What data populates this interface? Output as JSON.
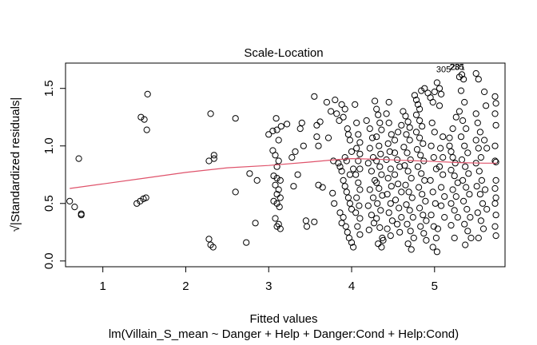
{
  "chart_data": {
    "type": "scatter",
    "title": "Scale-Location",
    "xlabel": "Fitted values",
    "caption": "lm(Villain_S_mean ~ Danger + Help + Danger:Cond + Help:Cond)",
    "ylabel": "√|Standardized residuals|",
    "xlim": [
      0.55,
      5.85
    ],
    "ylim": [
      -0.05,
      1.72
    ],
    "x_ticks": [
      1,
      2,
      3,
      4,
      5
    ],
    "x_tick_labels": [
      "1",
      "2",
      "3",
      "4",
      "5"
    ],
    "y_ticks": [
      0.0,
      0.5,
      1.0,
      1.5
    ],
    "y_tick_labels": [
      "0.0",
      "0.5",
      "1.0",
      "1.5"
    ],
    "line_color": "#DF536B",
    "point_color": "#000000",
    "labels": [
      {
        "text": "305",
        "x": 5.02,
        "y": 1.64
      },
      {
        "text": "201",
        "x": 5.19,
        "y": 1.66
      },
      {
        "text": "235",
        "x": 5.18,
        "y": 1.66
      }
    ],
    "points": [
      [
        0.6,
        0.52
      ],
      [
        0.66,
        0.47
      ],
      [
        0.71,
        0.89
      ],
      [
        0.74,
        0.4
      ],
      [
        0.74,
        0.41
      ],
      [
        1.41,
        0.5
      ],
      [
        1.45,
        0.52
      ],
      [
        1.49,
        0.54
      ],
      [
        1.52,
        0.55
      ],
      [
        1.46,
        1.25
      ],
      [
        1.5,
        1.23
      ],
      [
        1.54,
        1.45
      ],
      [
        1.53,
        1.14
      ],
      [
        2.28,
        0.19
      ],
      [
        2.3,
        0.14
      ],
      [
        2.33,
        0.12
      ],
      [
        2.28,
        0.87
      ],
      [
        2.34,
        0.89
      ],
      [
        2.34,
        0.92
      ],
      [
        2.3,
        1.28
      ],
      [
        2.6,
        1.24
      ],
      [
        2.6,
        0.6
      ],
      [
        2.73,
        0.16
      ],
      [
        2.77,
        0.76
      ],
      [
        2.86,
        0.7
      ],
      [
        2.84,
        0.33
      ],
      [
        3.0,
        1.1
      ],
      [
        3.05,
        1.13
      ],
      [
        3.1,
        1.14
      ],
      [
        3.15,
        1.17
      ],
      [
        3.22,
        1.19
      ],
      [
        3.09,
        1.24
      ],
      [
        3.12,
        1.05
      ],
      [
        3.05,
        0.96
      ],
      [
        3.08,
        0.92
      ],
      [
        3.12,
        0.87
      ],
      [
        3.1,
        0.82
      ],
      [
        3.06,
        0.74
      ],
      [
        3.1,
        0.72
      ],
      [
        3.14,
        0.7
      ],
      [
        3.08,
        0.66
      ],
      [
        3.12,
        0.62
      ],
      [
        3.1,
        0.58
      ],
      [
        3.14,
        0.55
      ],
      [
        3.06,
        0.52
      ],
      [
        3.1,
        0.5
      ],
      [
        3.13,
        0.47
      ],
      [
        3.08,
        0.37
      ],
      [
        3.12,
        0.32
      ],
      [
        3.14,
        0.28
      ],
      [
        3.1,
        0.3
      ],
      [
        3.3,
        0.65
      ],
      [
        3.35,
        0.75
      ],
      [
        3.28,
        0.9
      ],
      [
        3.32,
        0.95
      ],
      [
        3.38,
        1.15
      ],
      [
        3.4,
        1.2
      ],
      [
        3.42,
        1.0
      ],
      [
        3.45,
        0.35
      ],
      [
        3.46,
        0.3
      ],
      [
        3.55,
        0.34
      ],
      [
        3.6,
        0.66
      ],
      [
        3.65,
        0.64
      ],
      [
        3.58,
        1.08
      ],
      [
        3.62,
        1.21
      ],
      [
        3.55,
        1.43
      ],
      [
        3.58,
        1.18
      ],
      [
        3.6,
        1.0
      ],
      [
        3.7,
        1.38
      ],
      [
        3.72,
        1.07
      ],
      [
        3.75,
        1.3
      ],
      [
        3.78,
        0.87
      ],
      [
        3.8,
        1.4
      ],
      [
        3.77,
        0.59
      ],
      [
        3.79,
        0.5
      ],
      [
        3.82,
        1.28
      ],
      [
        3.85,
        1.22
      ],
      [
        3.88,
        1.36
      ],
      [
        3.9,
        1.25
      ],
      [
        3.92,
        1.32
      ],
      [
        3.95,
        1.15
      ],
      [
        3.96,
        1.1
      ],
      [
        3.98,
        1.05
      ],
      [
        4.0,
        0.95
      ],
      [
        3.84,
        0.85
      ],
      [
        3.86,
        0.82
      ],
      [
        3.88,
        0.78
      ],
      [
        3.9,
        0.7
      ],
      [
        3.92,
        0.65
      ],
      [
        3.94,
        0.6
      ],
      [
        3.96,
        0.55
      ],
      [
        3.98,
        0.5
      ],
      [
        4.0,
        0.45
      ],
      [
        3.86,
        0.42
      ],
      [
        3.9,
        0.38
      ],
      [
        3.93,
        0.3
      ],
      [
        3.95,
        0.25
      ],
      [
        3.97,
        0.2
      ],
      [
        4.0,
        0.16
      ],
      [
        4.02,
        0.12
      ],
      [
        3.88,
        0.33
      ],
      [
        3.92,
        0.9
      ],
      [
        3.94,
        0.87
      ],
      [
        3.98,
        0.75
      ],
      [
        4.02,
        0.8
      ],
      [
        4.04,
        1.36
      ],
      [
        4.06,
        1.2
      ],
      [
        4.08,
        1.1
      ],
      [
        4.1,
        1.03
      ],
      [
        4.06,
        0.98
      ],
      [
        4.1,
        0.93
      ],
      [
        4.08,
        0.87
      ],
      [
        4.1,
        0.8
      ],
      [
        4.05,
        0.75
      ],
      [
        4.08,
        0.68
      ],
      [
        4.1,
        0.62
      ],
      [
        4.06,
        0.55
      ],
      [
        4.09,
        0.48
      ],
      [
        4.05,
        0.42
      ],
      [
        4.1,
        0.37
      ],
      [
        4.07,
        0.3
      ],
      [
        4.1,
        0.23
      ],
      [
        4.18,
        1.22
      ],
      [
        4.22,
        1.15
      ],
      [
        4.25,
        1.07
      ],
      [
        4.22,
        0.98
      ],
      [
        4.26,
        0.9
      ],
      [
        4.2,
        0.85
      ],
      [
        4.24,
        0.78
      ],
      [
        4.28,
        0.7
      ],
      [
        4.22,
        0.62
      ],
      [
        4.26,
        0.55
      ],
      [
        4.2,
        0.48
      ],
      [
        4.24,
        0.4
      ],
      [
        4.27,
        0.33
      ],
      [
        4.21,
        0.27
      ],
      [
        4.28,
        1.39
      ],
      [
        4.3,
        1.32
      ],
      [
        4.32,
        1.27
      ],
      [
        4.34,
        1.2
      ],
      [
        4.36,
        1.14
      ],
      [
        4.3,
        1.08
      ],
      [
        4.33,
        1.0
      ],
      [
        4.35,
        0.93
      ],
      [
        4.3,
        0.87
      ],
      [
        4.34,
        0.82
      ],
      [
        4.36,
        0.75
      ],
      [
        4.3,
        0.68
      ],
      [
        4.33,
        0.63
      ],
      [
        4.37,
        0.57
      ],
      [
        4.31,
        0.5
      ],
      [
        4.35,
        0.44
      ],
      [
        4.3,
        0.37
      ],
      [
        4.34,
        0.29
      ],
      [
        4.37,
        0.2
      ],
      [
        4.32,
        0.15
      ],
      [
        4.36,
        0.12
      ],
      [
        4.38,
        0.18
      ],
      [
        4.42,
        1.28
      ],
      [
        4.45,
        1.2
      ],
      [
        4.48,
        1.1
      ],
      [
        4.44,
        1.02
      ],
      [
        4.46,
        0.95
      ],
      [
        4.42,
        0.88
      ],
      [
        4.47,
        0.8
      ],
      [
        4.44,
        0.72
      ],
      [
        4.48,
        0.65
      ],
      [
        4.43,
        0.58
      ],
      [
        4.47,
        0.5
      ],
      [
        4.45,
        0.42
      ],
      [
        4.49,
        0.35
      ],
      [
        4.43,
        0.28
      ],
      [
        4.47,
        0.22
      ],
      [
        4.45,
        1.38
      ],
      [
        4.52,
        0.94
      ],
      [
        4.55,
        0.88
      ],
      [
        4.58,
        0.82
      ],
      [
        4.52,
        0.75
      ],
      [
        4.56,
        0.67
      ],
      [
        4.6,
        0.6
      ],
      [
        4.53,
        0.53
      ],
      [
        4.57,
        0.46
      ],
      [
        4.6,
        0.38
      ],
      [
        4.55,
        0.32
      ],
      [
        4.58,
        0.25
      ],
      [
        4.52,
        1.05
      ],
      [
        4.56,
        1.12
      ],
      [
        4.6,
        1.18
      ],
      [
        4.62,
        1.3
      ],
      [
        4.65,
        1.26
      ],
      [
        4.68,
        1.21
      ],
      [
        4.7,
        1.16
      ],
      [
        4.66,
        1.1
      ],
      [
        4.7,
        1.05
      ],
      [
        4.63,
        0.99
      ],
      [
        4.67,
        0.94
      ],
      [
        4.71,
        0.88
      ],
      [
        4.64,
        0.83
      ],
      [
        4.68,
        0.78
      ],
      [
        4.72,
        0.72
      ],
      [
        4.65,
        0.66
      ],
      [
        4.69,
        0.6
      ],
      [
        4.73,
        0.55
      ],
      [
        4.66,
        0.49
      ],
      [
        4.7,
        0.44
      ],
      [
        4.74,
        0.38
      ],
      [
        4.67,
        0.32
      ],
      [
        4.71,
        0.26
      ],
      [
        4.75,
        0.2
      ],
      [
        4.68,
        0.15
      ],
      [
        4.72,
        0.1
      ],
      [
        4.76,
        1.44
      ],
      [
        4.78,
        1.4
      ],
      [
        4.8,
        1.36
      ],
      [
        4.82,
        1.32
      ],
      [
        4.78,
        1.27
      ],
      [
        4.82,
        1.22
      ],
      [
        4.85,
        1.17
      ],
      [
        4.78,
        1.12
      ],
      [
        4.82,
        1.07
      ],
      [
        4.86,
        1.02
      ],
      [
        4.79,
        0.97
      ],
      [
        4.83,
        0.92
      ],
      [
        4.87,
        0.87
      ],
      [
        4.8,
        0.82
      ],
      [
        4.84,
        0.76
      ],
      [
        4.88,
        0.7
      ],
      [
        4.81,
        0.64
      ],
      [
        4.85,
        0.58
      ],
      [
        4.89,
        0.52
      ],
      [
        4.82,
        0.46
      ],
      [
        4.86,
        0.4
      ],
      [
        4.9,
        0.35
      ],
      [
        4.83,
        0.3
      ],
      [
        4.87,
        0.24
      ],
      [
        4.9,
        0.18
      ],
      [
        4.84,
        1.48
      ],
      [
        4.88,
        1.5
      ],
      [
        4.92,
        1.46
      ],
      [
        4.95,
        1.42
      ],
      [
        4.98,
        1.38
      ],
      [
        5.0,
        1.47
      ],
      [
        4.97,
        1.2
      ],
      [
        5.0,
        1.12
      ],
      [
        4.96,
        1.0
      ],
      [
        4.99,
        0.9
      ],
      [
        5.02,
        0.8
      ],
      [
        4.95,
        0.7
      ],
      [
        4.98,
        0.6
      ],
      [
        5.01,
        0.5
      ],
      [
        4.96,
        0.4
      ],
      [
        4.99,
        0.3
      ],
      [
        5.02,
        0.2
      ],
      [
        4.98,
        0.12
      ],
      [
        5.03,
        0.08
      ],
      [
        5.03,
        1.55
      ],
      [
        5.06,
        1.5
      ],
      [
        5.08,
        1.45
      ],
      [
        5.06,
        1.35
      ],
      [
        5.1,
        1.08
      ],
      [
        5.07,
        0.98
      ],
      [
        5.1,
        0.9
      ],
      [
        5.06,
        0.82
      ],
      [
        5.1,
        0.75
      ],
      [
        5.08,
        0.64
      ],
      [
        5.12,
        0.56
      ],
      [
        5.08,
        0.48
      ],
      [
        5.12,
        0.38
      ],
      [
        5.04,
        0.28
      ],
      [
        5.18,
        1.0
      ],
      [
        5.2,
        0.95
      ],
      [
        5.22,
        0.9
      ],
      [
        5.25,
        0.85
      ],
      [
        5.2,
        0.79
      ],
      [
        5.24,
        0.74
      ],
      [
        5.28,
        0.68
      ],
      [
        5.22,
        0.62
      ],
      [
        5.26,
        0.56
      ],
      [
        5.2,
        0.5
      ],
      [
        5.24,
        0.44
      ],
      [
        5.28,
        0.38
      ],
      [
        5.18,
        1.07
      ],
      [
        5.22,
        1.15
      ],
      [
        5.26,
        1.25
      ],
      [
        5.2,
        0.31
      ],
      [
        5.24,
        0.2
      ],
      [
        5.3,
        1.6
      ],
      [
        5.33,
        1.62
      ],
      [
        5.35,
        1.58
      ],
      [
        5.32,
        1.48
      ],
      [
        5.36,
        1.38
      ],
      [
        5.3,
        1.3
      ],
      [
        5.34,
        1.22
      ],
      [
        5.38,
        1.15
      ],
      [
        5.32,
        1.08
      ],
      [
        5.36,
        1.0
      ],
      [
        5.4,
        0.94
      ],
      [
        5.33,
        0.88
      ],
      [
        5.37,
        0.82
      ],
      [
        5.41,
        0.76
      ],
      [
        5.34,
        0.7
      ],
      [
        5.38,
        0.64
      ],
      [
        5.42,
        0.58
      ],
      [
        5.35,
        0.52
      ],
      [
        5.39,
        0.45
      ],
      [
        5.43,
        0.38
      ],
      [
        5.36,
        0.32
      ],
      [
        5.4,
        0.26
      ],
      [
        5.44,
        0.2
      ],
      [
        5.37,
        0.14
      ],
      [
        5.5,
        1.63
      ],
      [
        5.53,
        1.58
      ],
      [
        5.5,
        1.28
      ],
      [
        5.52,
        1.2
      ],
      [
        5.55,
        1.12
      ],
      [
        5.5,
        1.05
      ],
      [
        5.53,
        0.98
      ],
      [
        5.56,
        0.9
      ],
      [
        5.5,
        0.85
      ],
      [
        5.54,
        0.78
      ],
      [
        5.57,
        0.7
      ],
      [
        5.51,
        0.65
      ],
      [
        5.55,
        0.58
      ],
      [
        5.58,
        0.5
      ],
      [
        5.52,
        0.42
      ],
      [
        5.56,
        0.35
      ],
      [
        5.59,
        0.28
      ],
      [
        5.53,
        0.2
      ],
      [
        5.6,
        1.47
      ],
      [
        5.62,
        1.35
      ],
      [
        5.6,
        1.05
      ],
      [
        5.63,
        0.98
      ],
      [
        5.61,
        0.62
      ],
      [
        5.63,
        0.45
      ],
      [
        5.73,
        1.43
      ],
      [
        5.74,
        1.37
      ],
      [
        5.73,
        1.28
      ],
      [
        5.74,
        1.18
      ],
      [
        5.73,
        1.0
      ],
      [
        5.74,
        0.86
      ],
      [
        5.73,
        0.87
      ],
      [
        5.74,
        0.7
      ],
      [
        5.73,
        0.63
      ],
      [
        5.74,
        0.55
      ],
      [
        5.73,
        0.5
      ],
      [
        5.74,
        0.4
      ],
      [
        5.73,
        0.3
      ],
      [
        5.74,
        0.22
      ]
    ],
    "smooth_line": [
      [
        0.6,
        0.63
      ],
      [
        1.0,
        0.67
      ],
      [
        1.5,
        0.72
      ],
      [
        2.0,
        0.77
      ],
      [
        2.5,
        0.81
      ],
      [
        3.0,
        0.83
      ],
      [
        3.5,
        0.86
      ],
      [
        3.8,
        0.88
      ],
      [
        4.0,
        0.89
      ],
      [
        4.3,
        0.885
      ],
      [
        4.6,
        0.875
      ],
      [
        5.0,
        0.865
      ],
      [
        5.3,
        0.855
      ],
      [
        5.6,
        0.85
      ],
      [
        5.75,
        0.85
      ]
    ]
  }
}
